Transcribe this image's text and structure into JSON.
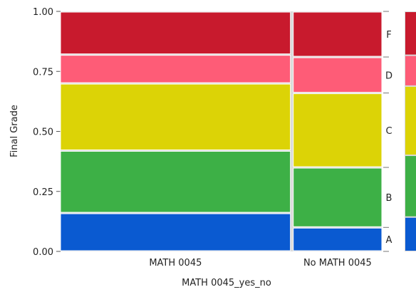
{
  "chart_data": {
    "type": "mosaic",
    "xlabel": "MATH 0045_yes_no",
    "ylabel": "Final Grade",
    "ylim": [
      0,
      1
    ],
    "yticks": [
      "0.00",
      "0.25",
      "0.50",
      "0.75",
      "1.00"
    ],
    "ytick_values": [
      0,
      0.25,
      0.5,
      0.75,
      1.0
    ],
    "categories": [
      "MATH 0045",
      "No MATH 0045"
    ],
    "category_widths": [
      0.72,
      0.28
    ],
    "grades": [
      "A",
      "B",
      "C",
      "D",
      "F"
    ],
    "grade_colors": {
      "A": "#0a5ad1",
      "B": "#3db046",
      "C": "#dcd306",
      "D": "#fe5c77",
      "F": "#c81a2d"
    },
    "columns": [
      {
        "category": "MATH 0045",
        "proportions": {
          "A": 0.16,
          "B": 0.26,
          "C": 0.28,
          "D": 0.12,
          "F": 0.18
        }
      },
      {
        "category": "No MATH 0045",
        "proportions": {
          "A": 0.1,
          "B": 0.25,
          "C": 0.31,
          "D": 0.15,
          "F": 0.19
        }
      }
    ],
    "overall": {
      "label_positions": {
        "A": 0.06,
        "B": 0.265,
        "C": 0.545,
        "D": 0.755,
        "F": 0.91
      }
    }
  }
}
